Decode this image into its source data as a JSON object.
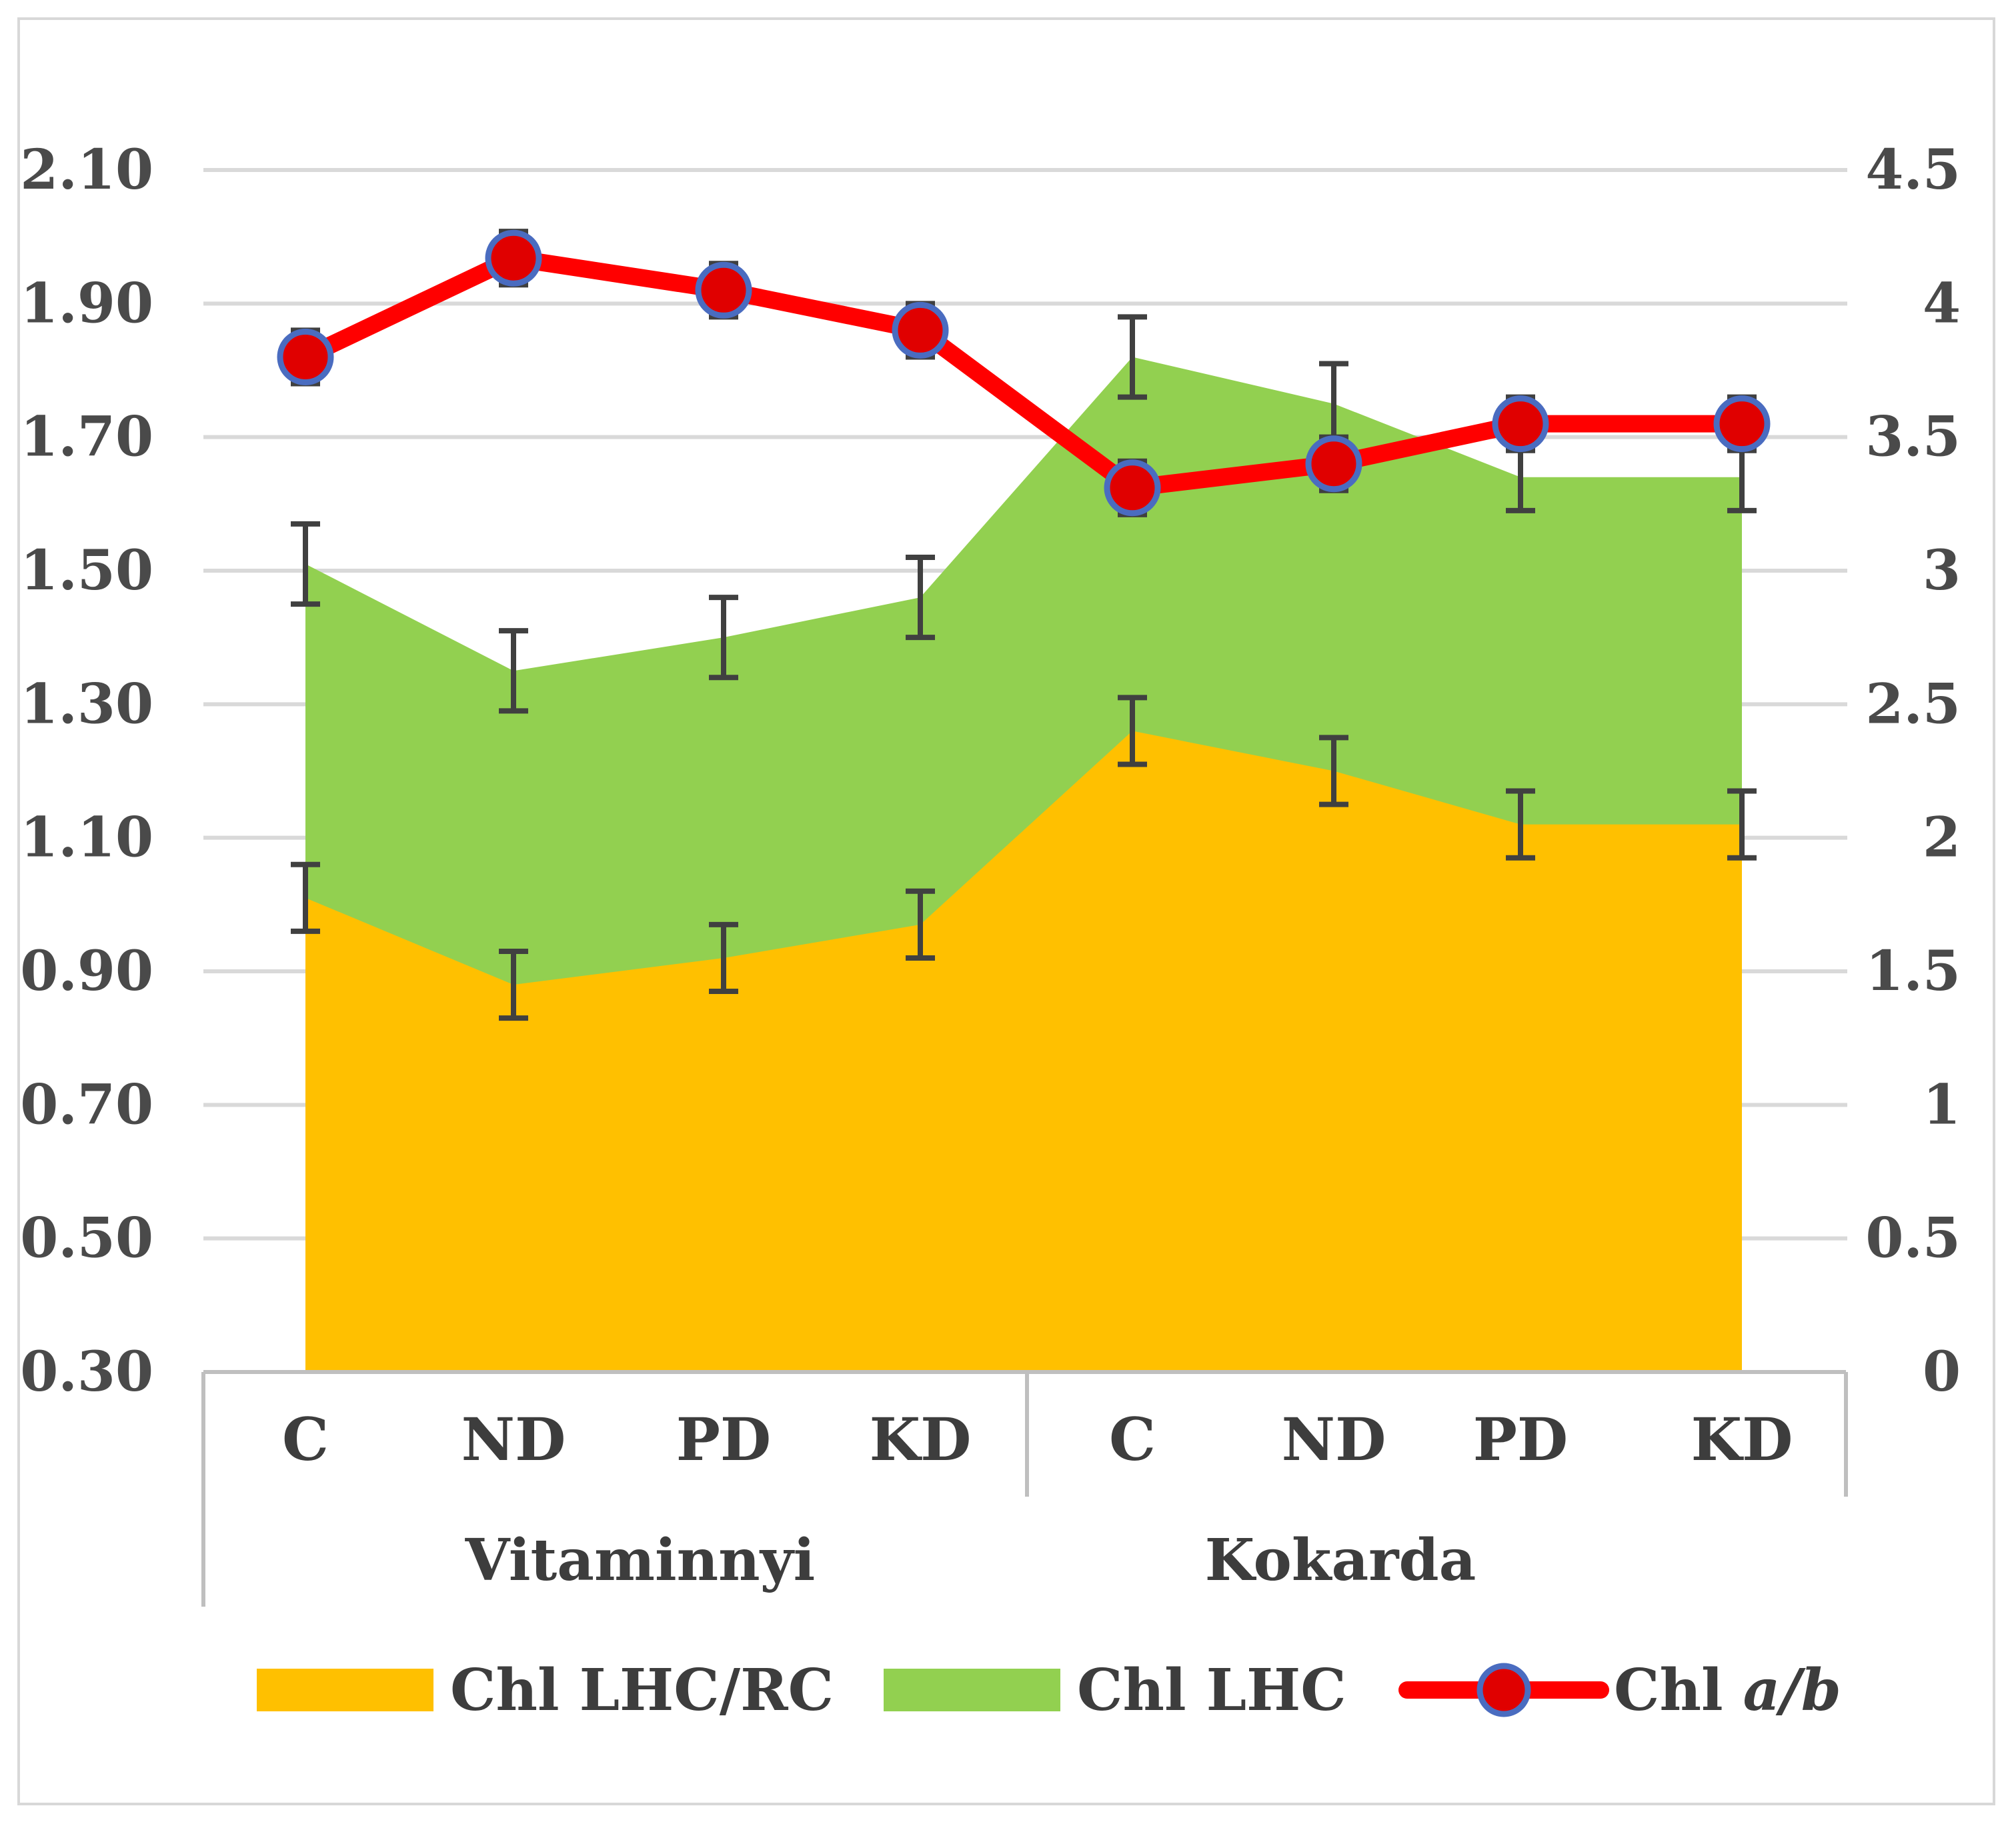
{
  "chart_data": {
    "type": "area",
    "categories": [
      "C",
      "ND",
      "PD",
      "KD",
      "C",
      "ND",
      "PD",
      "KD"
    ],
    "groups": [
      {
        "label": "Vitaminnyi",
        "categories": [
          0,
          1,
          2,
          3
        ]
      },
      {
        "label": "Kokarda",
        "categories": [
          4,
          5,
          6,
          7
        ]
      }
    ],
    "y_left": {
      "lim": [
        0.3,
        2.1
      ],
      "ticks": [
        "2.10",
        "1.90",
        "1.70",
        "1.50",
        "1.30",
        "1.10",
        "0.90",
        "0.70",
        "0.50",
        "0.30"
      ],
      "tick_values": [
        2.1,
        1.9,
        1.7,
        1.5,
        1.3,
        1.1,
        0.9,
        0.7,
        0.5,
        0.3
      ]
    },
    "y_right": {
      "lim": [
        0,
        4.5
      ],
      "ticks": [
        "4.5",
        "4",
        "3.5",
        "3",
        "2.5",
        "2",
        "1.5",
        "1",
        "0.5",
        "0"
      ],
      "tick_values": [
        4.5,
        4,
        3.5,
        3,
        2.5,
        2,
        1.5,
        1,
        0.5,
        0
      ]
    },
    "grid": true,
    "legend_position": "bottom",
    "series": [
      {
        "name": "Chl LHC/RC",
        "kind": "area",
        "axis": "left",
        "color": "#ffc000",
        "values": [
          1.01,
          0.88,
          0.92,
          0.97,
          1.26,
          1.2,
          1.12,
          1.12
        ],
        "errors": [
          0.05,
          0.05,
          0.05,
          0.05,
          0.05,
          0.05,
          0.05,
          0.05
        ]
      },
      {
        "name": "Chl LHC",
        "kind": "area",
        "axis": "left",
        "color": "#92d050",
        "values": [
          1.51,
          1.35,
          1.4,
          1.46,
          1.82,
          1.75,
          1.64,
          1.64
        ],
        "errors": [
          0.06,
          0.06,
          0.06,
          0.06,
          0.06,
          0.06,
          0.05,
          0.05
        ]
      },
      {
        "name": "Chl a/b",
        "name_prefix": "Chl ",
        "name_italic": "a/b",
        "kind": "line",
        "axis": "right",
        "color": "#ff0000",
        "marker_color": "#e00000",
        "marker_edge": "#4a6cc0",
        "values": [
          3.8,
          4.17,
          4.05,
          3.9,
          3.31,
          3.4,
          3.55,
          3.55
        ],
        "errors": [
          0.1,
          0.1,
          0.1,
          0.1,
          0.1,
          0.1,
          0.1,
          0.1
        ]
      }
    ]
  },
  "colors": {
    "grid": "#d9d9d9",
    "axis": "#bfbfbf",
    "error_bar": "#404040"
  }
}
